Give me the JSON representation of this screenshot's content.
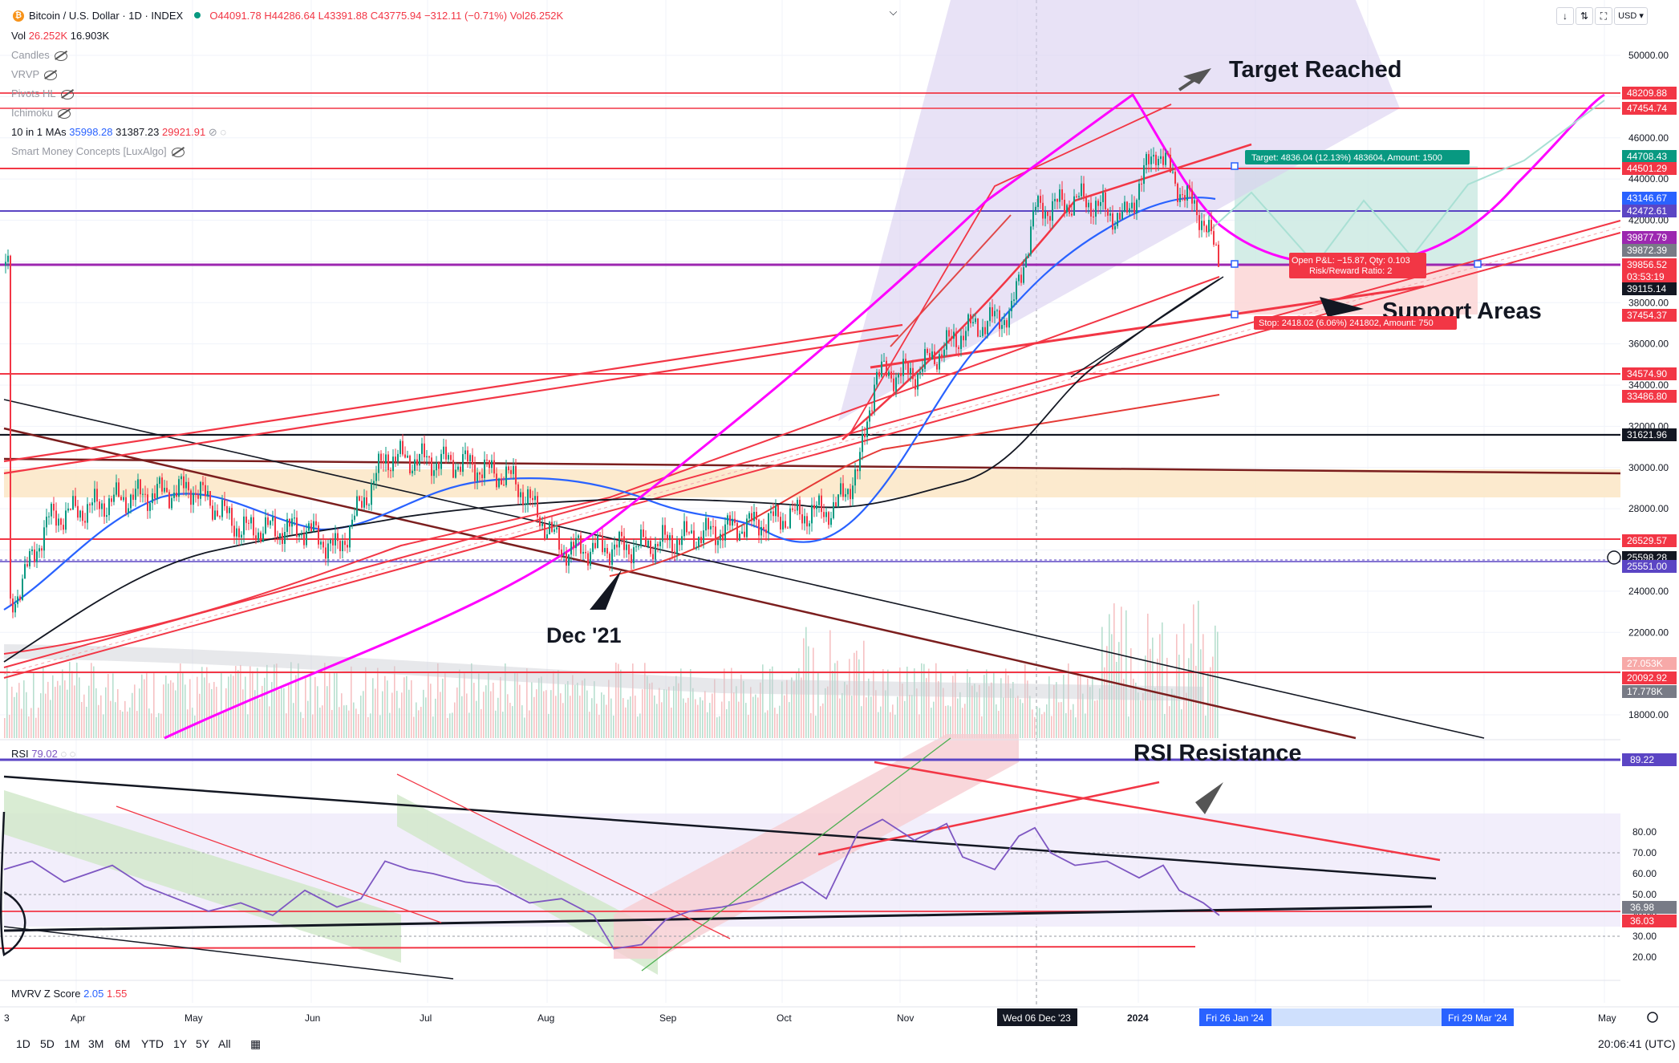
{
  "header": {
    "symbol": "Bitcoin / U.S. Dollar · 1D · INDEX",
    "open": "O44091.78",
    "high": "H44286.64",
    "low": "L43391.88",
    "close": "C43775.94",
    "change": "−312.11 (−0.71%)",
    "vol": "Vol26.252K",
    "currency": "USD"
  },
  "legend": {
    "vol_label": "Vol",
    "vol_v1": "26.252K",
    "vol_v2": "16.903K",
    "candles": "Candles",
    "vrvp": "VRVP",
    "pivots": "Pivots HL",
    "ichimoku": "Ichimoku",
    "mas_label": "10 in 1 MAs",
    "ma1": "35998.28",
    "ma2": "31387.23",
    "ma3": "29921.91",
    "smc": "Smart Money Concepts [LuxAlgo]"
  },
  "annotations": {
    "target_reached": "Target Reached",
    "support_areas": "Support Areas",
    "dec21": "Dec '21",
    "rsi_resistance": "RSI Resistance",
    "target_box": "Target: 4836.04 (12.13%) 483604, Amount: 1500",
    "pnl_line1": "Open P&L: −15.87, Qty: 0.103",
    "pnl_line2": "Risk/Reward Ratio: 2",
    "stop_box": "Stop: 2418.02 (6.06%) 241802, Amount: 750"
  },
  "price_axis": {
    "ticks": [
      "50000.00",
      "46000.00",
      "44000.00",
      "42000.00",
      "38000.00",
      "36000.00",
      "34000.00",
      "32000.00",
      "30000.00",
      "28000.00",
      "24000.00",
      "22000.00",
      "18000.00"
    ],
    "tags": [
      {
        "label": "48209.88",
        "color": "#f23645"
      },
      {
        "label": "47454.74",
        "color": "#f23645"
      },
      {
        "label": "44708.43",
        "color": "#089981"
      },
      {
        "label": "44501.29",
        "color": "#f23645"
      },
      {
        "label": "43146.67",
        "color": "#2962ff"
      },
      {
        "label": "42472.61",
        "color": "#5b45c4"
      },
      {
        "label": "39877.79",
        "color": "#9c27b0"
      },
      {
        "label": "39872.39",
        "color": "#787b86"
      },
      {
        "label": "39856.52",
        "color": "#f23645"
      },
      {
        "label": "03:53:19",
        "color": "#f23645"
      },
      {
        "label": "39115.14",
        "color": "#131722"
      },
      {
        "label": "37454.37",
        "color": "#f23645"
      },
      {
        "label": "34574.90",
        "color": "#f23645"
      },
      {
        "label": "33486.80",
        "color": "#f23645"
      },
      {
        "label": "31621.96",
        "color": "#131722"
      },
      {
        "label": "26529.57",
        "color": "#f23645"
      },
      {
        "label": "25598.28",
        "color": "#131722"
      },
      {
        "label": "25551.00",
        "color": "#5b45c4"
      },
      {
        "label": "27.053K",
        "color": "#f7a9a8"
      },
      {
        "label": "20092.92",
        "color": "#f23645"
      },
      {
        "label": "17.778K",
        "color": "#787b86"
      }
    ]
  },
  "rsi": {
    "label": "RSI",
    "value": "79.02",
    "ticks": [
      "80.00",
      "70.00",
      "60.00",
      "50.00",
      "40.00",
      "30.00",
      "20.00"
    ],
    "tags": [
      {
        "label": "89.22",
        "color": "#5b45c4"
      },
      {
        "label": "36.98",
        "color": "#787b86"
      },
      {
        "label": "36.03",
        "color": "#f23645"
      }
    ]
  },
  "mvrv": {
    "label": "MVRV Z Score",
    "v1": "2.05",
    "v2": "1.55"
  },
  "time_axis": {
    "labels": [
      "3",
      "Apr",
      "May",
      "Jun",
      "Jul",
      "Aug",
      "Sep",
      "Oct",
      "Nov",
      "2024",
      "Mar",
      "May"
    ],
    "hl_crosshair": "Wed 06 Dec '23",
    "hl_start": "Fri 26 Jan '24",
    "hl_end": "Fri 29 Mar '24"
  },
  "toolbar": {
    "ranges": [
      "1D",
      "5D",
      "1M",
      "3M",
      "6M",
      "YTD",
      "1Y",
      "5Y",
      "All"
    ],
    "clock": "20:06:41 (UTC)"
  },
  "chart_data": {
    "type": "line",
    "title": "Bitcoin / U.S. Dollar · 1D · INDEX",
    "x": [
      "Apr",
      "May",
      "Jun",
      "Jul",
      "Aug",
      "Sep",
      "Oct",
      "Nov",
      "Dec",
      "2024",
      "Jan"
    ],
    "series": [
      {
        "name": "BTCUSD",
        "values": [
          28500,
          28300,
          27000,
          30500,
          29200,
          26000,
          27500,
          34500,
          42000,
          43500,
          39800
        ]
      },
      {
        "name": "RSI",
        "values": [
          60,
          58,
          52,
          62,
          32,
          38,
          55,
          85,
          70,
          68,
          42
        ]
      }
    ],
    "ylim": [
      17000,
      51000
    ],
    "levels": [
      48209.88,
      47454.74,
      44501.29,
      42472.61,
      39856.52,
      37454.37,
      34574.9,
      33486.8,
      31621.96,
      26529.57,
      25551.0,
      20092.92
    ]
  }
}
